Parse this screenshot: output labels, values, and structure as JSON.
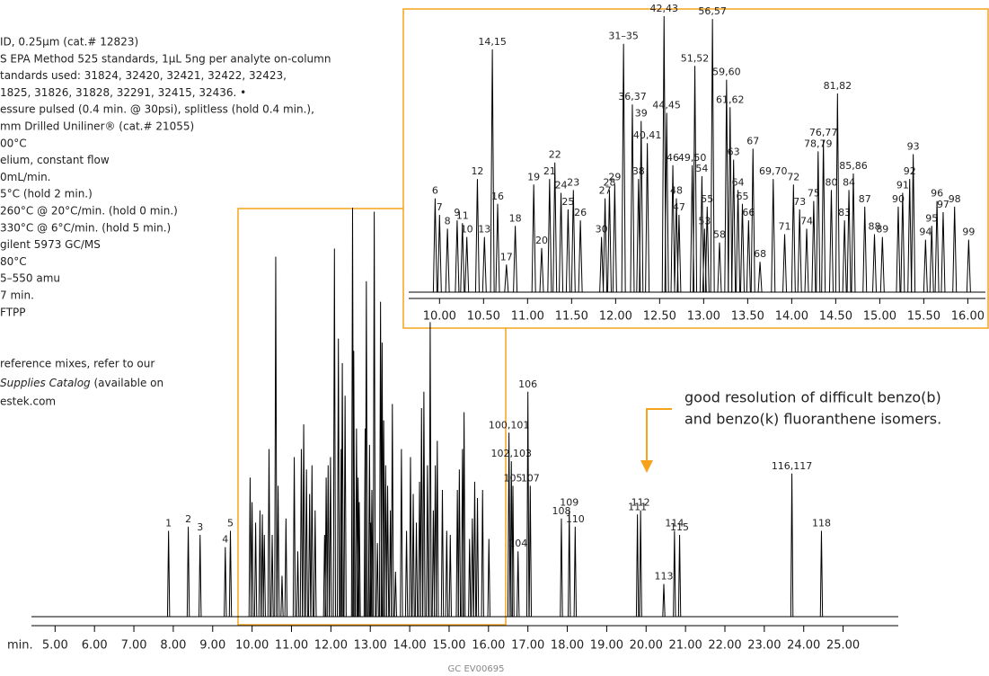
{
  "chart_data": {
    "type": "chromatogram",
    "notes": [
      "ID, 0.25µm (cat.# 12823)",
      "S EPA Method 525 standards, 1µL   5ng per analyte on-column",
      "tandards used:  31824, 32420, 32421, 32422, 32423,",
      "1825, 31826, 31828, 32291, 32415, 32436. •",
      "essure pulsed (0.4 min. @ 30psi),  splitless (hold 0.4 min.),",
      "mm  Drilled Uniliner® (cat.# 21055)",
      "00°C",
      "elium, constant flow",
      "0mL/min.",
      "5°C (hold 2 min.)",
      " 260°C @ 20°C/min. (hold 0 min.)",
      " 330°C @ 6°C/min. (hold 5 min.)",
      "gilent 5973 GC/MS",
      "80°C",
      "5–550 amu",
      "7 min.",
      "FTPP"
    ],
    "ref_line1": "reference mixes, refer to our",
    "ref_italic": "Supplies Catalog",
    "ref_rest": " (available on",
    "ref_line3": "estek.com",
    "annotation": [
      "good resolution of difficult benzo(b)",
      "and benzo(k) fluoranthene isomers."
    ],
    "footer": "GC  EV00695",
    "x_label": "min.",
    "color": "#f5a31a",
    "xlim": [
      4.4,
      26.4
    ],
    "xticks": [
      {
        "value": 5,
        "label": "5.00"
      },
      {
        "value": 6,
        "label": "6.00"
      },
      {
        "value": 7,
        "label": "7.00"
      },
      {
        "value": 8,
        "label": "8.00"
      },
      {
        "value": 9,
        "label": "9.00"
      },
      {
        "value": 10,
        "label": "10.00"
      },
      {
        "value": 11,
        "label": "11.00"
      },
      {
        "value": 12,
        "label": "12.00"
      },
      {
        "value": 13,
        "label": "13.00"
      },
      {
        "value": 14,
        "label": "14.00"
      },
      {
        "value": 15,
        "label": "15.00"
      },
      {
        "value": 16,
        "label": "16.00"
      },
      {
        "value": 17,
        "label": "17.00"
      },
      {
        "value": 18,
        "label": "18.00"
      },
      {
        "value": 19,
        "label": "19.00"
      },
      {
        "value": 20,
        "label": "20.00"
      },
      {
        "value": 21,
        "label": "21.00"
      },
      {
        "value": 22,
        "label": "22.00"
      },
      {
        "value": 23,
        "label": "23.00"
      },
      {
        "value": 24,
        "label": "24.00"
      },
      {
        "value": 25,
        "label": "25.00"
      }
    ],
    "inset_xlim": [
      9.65,
      16.2
    ],
    "inset_xticks": [
      {
        "value": 10,
        "label": "10.00"
      },
      {
        "value": 10.5,
        "label": "10.50"
      },
      {
        "value": 11,
        "label": "11.00"
      },
      {
        "value": 11.5,
        "label": "11.50"
      },
      {
        "value": 12,
        "label": "12.00"
      },
      {
        "value": 12.5,
        "label": "12.50"
      },
      {
        "value": 13,
        "label": "13.00"
      },
      {
        "value": 13.5,
        "label": "13.50"
      },
      {
        "value": 14,
        "label": "14.00"
      },
      {
        "value": 14.5,
        "label": "14.50"
      },
      {
        "value": 15,
        "label": "15.00"
      },
      {
        "value": 15.5,
        "label": "15.50"
      },
      {
        "value": 16,
        "label": "16.00"
      }
    ],
    "outer_peaks": {
      "labels": [
        "1",
        "2",
        "3",
        "4",
        "5",
        "100,101",
        "102,103",
        "104",
        "105",
        "106",
        "107",
        "108",
        "109",
        "110",
        "111",
        "112",
        "113",
        "114",
        "115",
        "116,117",
        "118"
      ],
      "x": [
        7.88,
        8.38,
        8.68,
        9.32,
        9.45,
        16.52,
        16.58,
        16.75,
        16.62,
        17.0,
        17.06,
        17.85,
        18.05,
        18.2,
        19.78,
        19.86,
        20.45,
        20.72,
        20.85,
        23.7,
        24.45
      ],
      "values": [
        21,
        22,
        20,
        17,
        21,
        45,
        38,
        16,
        32,
        55,
        32,
        24,
        26,
        22,
        25,
        26,
        8,
        21,
        20,
        35,
        21
      ]
    },
    "inset_peaks": {
      "labels": [
        "6",
        "7",
        "8",
        "9",
        "11",
        "10",
        "12",
        "14,15",
        "13",
        "16",
        "17",
        "18",
        "19",
        "20",
        "21",
        "22",
        "24",
        "25",
        "23",
        "26",
        "30",
        "27",
        "28",
        "29",
        "31–35",
        "36,37",
        "38",
        "39",
        "40,41",
        "42,43",
        "44,45",
        "46",
        "48",
        "47",
        "49,50",
        "51,52",
        "54",
        "53",
        "55",
        "56,57",
        "58",
        "59,60",
        "61,62",
        "63",
        "64",
        "65",
        "66",
        "67",
        "68",
        "69,70",
        "71",
        "72",
        "73",
        "74",
        "75",
        "78,79",
        "76,77",
        "80",
        "81,82",
        "83",
        "84",
        "85,86",
        "87",
        "88",
        "89",
        "90",
        "91",
        "92",
        "93",
        "94",
        "95",
        "96",
        "97",
        "98",
        "99"
      ],
      "x": [
        9.95,
        10.0,
        10.09,
        10.2,
        10.26,
        10.31,
        10.43,
        10.6,
        10.51,
        10.66,
        10.76,
        10.86,
        11.07,
        11.16,
        11.25,
        11.31,
        11.38,
        11.46,
        11.52,
        11.6,
        11.84,
        11.88,
        11.93,
        11.99,
        12.09,
        12.19,
        12.26,
        12.29,
        12.36,
        12.55,
        12.58,
        12.65,
        12.69,
        12.72,
        12.87,
        12.9,
        12.98,
        13.01,
        13.04,
        13.1,
        13.18,
        13.26,
        13.3,
        13.34,
        13.39,
        13.44,
        13.51,
        13.56,
        13.64,
        13.79,
        13.92,
        14.02,
        14.09,
        14.17,
        14.25,
        14.3,
        14.36,
        14.45,
        14.52,
        14.6,
        14.65,
        14.7,
        14.83,
        14.94,
        15.03,
        15.21,
        15.26,
        15.34,
        15.38,
        15.52,
        15.59,
        15.65,
        15.72,
        15.85,
        16.01
      ],
      "values": [
        34,
        28,
        23,
        26,
        25,
        20,
        41,
        88,
        20,
        32,
        10,
        24,
        39,
        16,
        41,
        47,
        36,
        30,
        37,
        26,
        20,
        34,
        37,
        39,
        90,
        68,
        41,
        62,
        54,
        100,
        65,
        46,
        34,
        28,
        46,
        82,
        42,
        23,
        31,
        99,
        18,
        77,
        67,
        48,
        37,
        32,
        26,
        52,
        11,
        41,
        21,
        39,
        30,
        23,
        33,
        51,
        55,
        37,
        72,
        26,
        37,
        43,
        31,
        21,
        20,
        31,
        36,
        41,
        50,
        19,
        24,
        33,
        29,
        31,
        19
      ]
    }
  }
}
